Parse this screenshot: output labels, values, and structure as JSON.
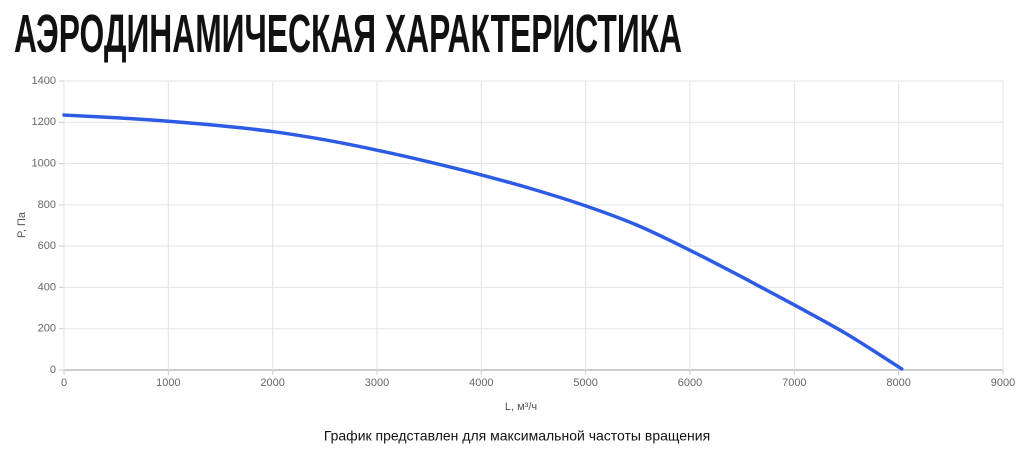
{
  "chart_data": {
    "type": "line",
    "title": "АЭРОДИНАМИЧЕСКАЯ ХАРАКТЕРИСТИКА",
    "x_label": "L, м³/ч",
    "y_label": "P, Па",
    "caption": "График представлен для максимальной частоты вращения",
    "x": [
      0,
      500,
      1000,
      1500,
      2000,
      2500,
      3000,
      3500,
      4000,
      4500,
      5000,
      5500,
      6000,
      6500,
      7000,
      7500,
      8030
    ],
    "series": [
      {
        "color": "#2d5be3",
        "values": [
          1235,
          1222,
          1205,
          1183,
          1155,
          1115,
          1065,
          1008,
          945,
          875,
          795,
          700,
          580,
          450,
          315,
          175,
          5
        ]
      }
    ],
    "xlim": [
      0,
      9000
    ],
    "ylim": [
      0,
      1400
    ],
    "xticks": [
      0,
      1000,
      2000,
      3000,
      4000,
      5000,
      6000,
      7000,
      8000,
      9000
    ],
    "yticks": [
      0,
      200,
      400,
      600,
      800,
      1000,
      1200,
      1400
    ],
    "grid": true
  }
}
